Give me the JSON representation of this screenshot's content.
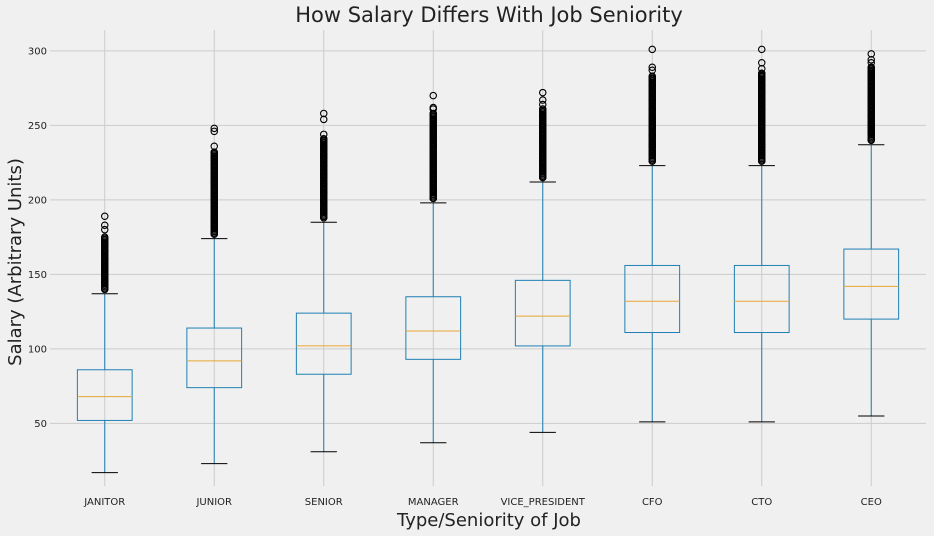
{
  "chart_data": {
    "type": "box",
    "title": "How Salary Differs With Job Seniority",
    "xlabel": "Type/Seniority of Job",
    "ylabel": "Salary (Arbitrary Units)",
    "ylim": [
      8,
      314
    ],
    "yticks": [
      50,
      100,
      150,
      200,
      250,
      300
    ],
    "grid": true,
    "colors": {
      "box": "#1f7fb4",
      "median": "#e8a636",
      "cap": "#000000",
      "grid": "#cbcbcb",
      "background": "#f0f0f0"
    },
    "categories": [
      "JANITOR",
      "JUNIOR",
      "SENIOR",
      "MANAGER",
      "VICE_PRESIDENT",
      "CFO",
      "CTO",
      "CEO"
    ],
    "boxes": [
      {
        "label": "JANITOR",
        "whislo": 17,
        "q1": 52,
        "med": 68,
        "q3": 86,
        "whishi": 137,
        "fliers": [
          140,
          145,
          150,
          155,
          160,
          165,
          170,
          175,
          180,
          183,
          189
        ]
      },
      {
        "label": "JUNIOR",
        "whislo": 23,
        "q1": 74,
        "med": 92,
        "q3": 114,
        "whishi": 174,
        "fliers": [
          177,
          182,
          188,
          194,
          200,
          206,
          212,
          218,
          224,
          229,
          232,
          236,
          246,
          248
        ]
      },
      {
        "label": "SENIOR",
        "whislo": 31,
        "q1": 83,
        "med": 102,
        "q3": 124,
        "whishi": 185,
        "fliers": [
          188,
          193,
          199,
          205,
          211,
          217,
          223,
          229,
          235,
          241,
          244,
          254,
          258
        ]
      },
      {
        "label": "MANAGER",
        "whislo": 37,
        "q1": 93,
        "med": 112,
        "q3": 135,
        "whishi": 198,
        "fliers": [
          201,
          206,
          212,
          218,
          224,
          230,
          236,
          242,
          248,
          254,
          258,
          261,
          262,
          270
        ]
      },
      {
        "label": "VICE_PRESIDENT",
        "whislo": 44,
        "q1": 102,
        "med": 122,
        "q3": 146,
        "whishi": 212,
        "fliers": [
          215,
          220,
          226,
          232,
          238,
          244,
          250,
          256,
          261,
          264,
          267,
          272
        ]
      },
      {
        "label": "CFO",
        "whislo": 51,
        "q1": 111,
        "med": 132,
        "q3": 156,
        "whishi": 223,
        "fliers": [
          226,
          231,
          237,
          243,
          249,
          255,
          261,
          267,
          273,
          277,
          281,
          283,
          287,
          289,
          301
        ]
      },
      {
        "label": "CTO",
        "whislo": 51,
        "q1": 111,
        "med": 132,
        "q3": 156,
        "whishi": 223,
        "fliers": [
          226,
          231,
          237,
          243,
          249,
          255,
          261,
          267,
          273,
          277,
          280,
          283,
          285,
          288,
          292,
          301
        ]
      },
      {
        "label": "CEO",
        "whislo": 55,
        "q1": 120,
        "med": 142,
        "q3": 167,
        "whishi": 237,
        "fliers": [
          240,
          245,
          251,
          257,
          263,
          269,
          275,
          281,
          286,
          289,
          292,
          294,
          298
        ]
      }
    ]
  }
}
